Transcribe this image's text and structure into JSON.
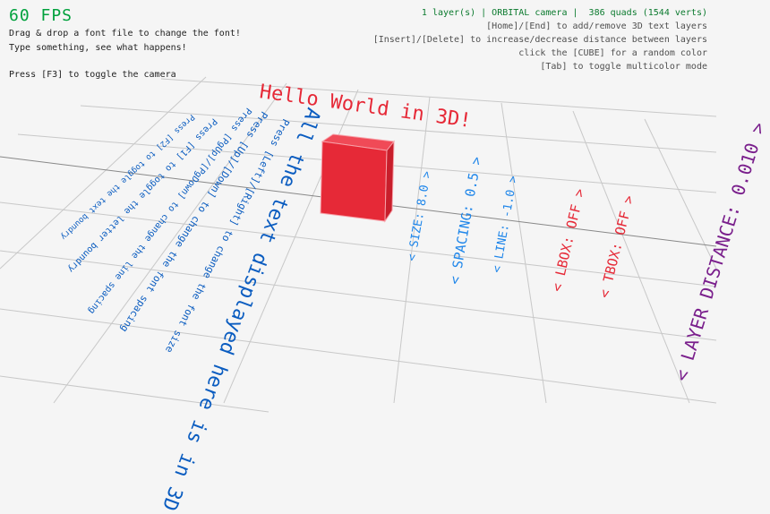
{
  "hud": {
    "fps": "60 FPS",
    "help_left": [
      "Drag & drop a font file to change the font!",
      "Type something, see what happens!",
      "Press [F3] to toggle the camera"
    ],
    "status": "1 layer(s) | ORBITAL camera |  386 quads (1544 verts)",
    "help_right": [
      "[Home]/[End] to add/remove 3D text layers",
      "[Insert]/[Delete] to increase/decrease distance between layers",
      "click the [CUBE] for a random color",
      "[Tab] to toggle multicolor mode"
    ]
  },
  "scene": {
    "title_text": "Hello World in 3D!",
    "info_lines": [
      "Press [F2] to toggle the text boundry",
      "Press [F1] to toggle the letter boundry",
      "Press [PgUp]/[PgDown] to change the line spacing",
      "Press [Up]/[Down] to change the font spacing",
      "Press [Left]/[Right] to change the font size",
      "All the text displayed here is in 3D"
    ],
    "settings": {
      "size": "< SIZE: 8.0 >",
      "spacing": "< SPACING: 0.5 >",
      "line": "< LINE: -1.0 >",
      "lbox": "< LBOX: OFF >",
      "tbox": "< TBOX: OFF >",
      "layer_distance": "< LAYER DISTANCE: 0.010 >"
    },
    "cube_color": "#e62937"
  },
  "colors": {
    "fps": "#00a13c",
    "status": "#0b7a2e",
    "help": "#505050",
    "info_text": "#0a5cc0",
    "settings_text": "#1f86ea",
    "box_toggles": "#e62937",
    "layer_distance": "#7a1f8c",
    "background": "#f5f5f5",
    "grid": "#c8c8c8"
  }
}
